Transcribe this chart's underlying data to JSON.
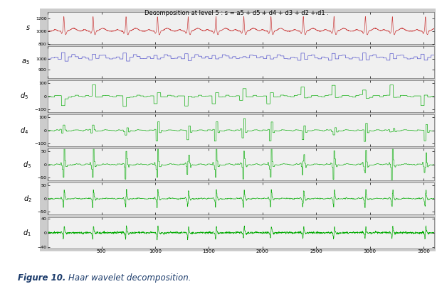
{
  "title": "Decomposition at level 5 : s = a5 + d5 + d4 + d3 + d2 + d1 .",
  "n_points": 3600,
  "subplot_labels": [
    "s",
    "a$_5$",
    "d$_5$",
    "d$_4$",
    "d$_3$",
    "d$_2$",
    "d$_1$"
  ],
  "s_color": "#cc4444",
  "a5_color": "#5555cc",
  "detail_color": "#00aa00",
  "s_ylim": [
    800,
    1300
  ],
  "s_yticks": [
    800,
    1000,
    1200
  ],
  "a5_ylim": [
    820,
    1120
  ],
  "a5_yticks": [
    900,
    1000
  ],
  "d5_ylim": [
    -120,
    120
  ],
  "d5_yticks": [
    -100,
    0,
    100
  ],
  "d4_ylim": [
    -120,
    120
  ],
  "d4_yticks": [
    -100,
    0,
    100
  ],
  "d3_ylim": [
    -60,
    60
  ],
  "d3_yticks": [
    -50,
    0,
    50
  ],
  "d2_ylim": [
    -60,
    60
  ],
  "d2_yticks": [
    -50,
    0,
    50
  ],
  "d1_ylim": [
    -45,
    45
  ],
  "d1_yticks": [
    -40,
    0,
    40
  ],
  "xlim": [
    0,
    3600
  ],
  "xticks": [
    500,
    1000,
    1500,
    2000,
    2500,
    3000,
    3500
  ],
  "panel_bg": "#cccccc",
  "plot_bg": "#f0f0f0",
  "seed": 42
}
